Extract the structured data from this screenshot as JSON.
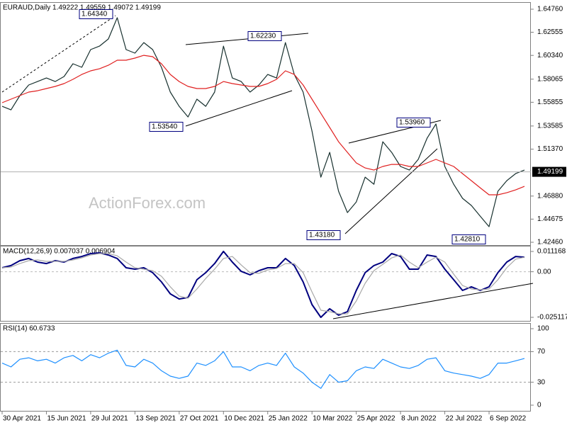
{
  "chart_data": [
    {
      "type": "line",
      "title": "EURAUD,Daily  1.49222 1.49559 1.49072 1.49199",
      "watermark": "ActionForex.com",
      "categories": [
        "30 Apr 2021",
        null,
        null,
        null,
        null,
        "15 Jun 2021",
        null,
        null,
        null,
        null,
        "29 Jul 2021",
        null,
        null,
        null,
        null,
        "13 Sep 2021",
        null,
        null,
        null,
        null,
        "27 Oct 2021",
        null,
        null,
        null,
        null,
        "10 Dec 2021",
        null,
        null,
        null,
        null,
        "25 Jan 2022",
        null,
        null,
        null,
        null,
        "10 Mar 2022",
        null,
        null,
        null,
        null,
        "25 Apr 2022",
        null,
        null,
        null,
        null,
        "8 Jun 2022",
        null,
        null,
        null,
        null,
        "22 Jul 2022",
        null,
        null,
        null,
        null,
        "6 Sep 2022",
        null,
        null,
        null,
        null
      ],
      "series": [
        {
          "color": "#17302e",
          "values": [
            1.5547,
            1.5513,
            1.5649,
            1.5751,
            1.5784,
            1.5818,
            1.5784,
            1.5832,
            1.5954,
            1.592,
            1.609,
            1.6123,
            1.6191,
            1.6395,
            1.609,
            1.6056,
            1.6157,
            1.609,
            1.592,
            1.5683,
            1.5547,
            1.5445,
            1.5615,
            1.5547,
            1.5683,
            1.6123,
            1.5818,
            1.5784,
            1.5683,
            1.5751,
            1.5852,
            1.5818,
            1.6157,
            1.5852,
            1.5683,
            1.531,
            1.4869,
            1.5106,
            1.4734,
            1.453,
            1.4632,
            1.4869,
            1.4801,
            1.5208,
            1.5106,
            1.4971,
            1.4937,
            1.5039,
            1.5242,
            1.5378,
            1.4971,
            1.4801,
            1.4666,
            1.4598,
            1.4496,
            1.4395,
            1.4734,
            1.4835,
            1.4903,
            1.4937
          ]
        },
        {
          "color": "#e02020",
          "values": [
            1.5581,
            1.5615,
            1.5649,
            1.5683,
            1.5696,
            1.5717,
            1.5737,
            1.5764,
            1.5805,
            1.5852,
            1.5886,
            1.5906,
            1.594,
            1.5988,
            1.5988,
            1.6008,
            1.6035,
            1.6022,
            1.5954,
            1.5852,
            1.5784,
            1.5737,
            1.5717,
            1.5717,
            1.5737,
            1.5784,
            1.5764,
            1.5751,
            1.5737,
            1.5737,
            1.5764,
            1.5805,
            1.5886,
            1.5852,
            1.5751,
            1.5615,
            1.5479,
            1.5344,
            1.5208,
            1.5106,
            1.5005,
            1.4957,
            1.4937,
            1.4971,
            1.4991,
            1.4991,
            1.4971,
            1.4971,
            1.5005,
            1.5039,
            1.5005,
            1.4971,
            1.4903,
            1.4835,
            1.4767,
            1.47,
            1.47,
            1.472,
            1.4747,
            1.4781
          ]
        }
      ],
      "ylim": [
        1.4219,
        1.6537
      ],
      "yticks": [
        {
          "value": 1.6476,
          "label": "1.64760"
        },
        {
          "value": 1.62555,
          "label": "1.62555"
        },
        {
          "value": 1.6034,
          "label": "1.60340"
        },
        {
          "value": 1.58065,
          "label": "1.58065"
        },
        {
          "value": 1.55855,
          "label": "1.55855"
        },
        {
          "value": 1.53585,
          "label": "1.53585"
        },
        {
          "value": 1.5137,
          "label": "1.51370"
        },
        {
          "value": 1.4688,
          "label": "1.46880"
        },
        {
          "value": 1.44675,
          "label": "1.44675"
        },
        {
          "value": 1.4246,
          "label": "1.42460"
        }
      ],
      "last_price": {
        "value": 1.49199,
        "label": "1.49199"
      },
      "annotations": [
        "1.64340",
        "1.62230",
        "1.53540",
        "1.53960",
        "1.43180",
        "1.42810"
      ]
    },
    {
      "type": "line",
      "title": "MACD(12,26,9) 0.007037 0.006904",
      "series": [
        {
          "color": "#00007f",
          "values": [
            0.0022,
            0.0034,
            0.0061,
            0.0073,
            0.0053,
            0.0045,
            0.0061,
            0.0053,
            0.0073,
            0.0084,
            0.01,
            0.0104,
            0.0092,
            0.0073,
            0.0022,
            0.0014,
            0.0022,
            -0.0005,
            -0.0056,
            -0.0122,
            -0.015,
            -0.0142,
            -0.0044,
            -0.0005,
            0.0045,
            0.0112,
            0.0053,
            0.0002,
            -0.0017,
            0.0006,
            0.0022,
            0.0022,
            0.0073,
            0.0034,
            -0.0056,
            -0.0181,
            -0.0251,
            -0.0204,
            -0.0239,
            -0.022,
            -0.0103,
            -0.0005,
            0.0034,
            0.0053,
            0.01,
            0.0084,
            0.0014,
            0.0014,
            0.0092,
            0.0084,
            0.0014,
            -0.0044,
            -0.0103,
            -0.0083,
            -0.0103,
            -0.0083,
            -0.0005,
            0.0053,
            0.0084,
            0.008
          ]
        },
        {
          "color": "#a8a8a8",
          "values": [
            0.0022,
            0.0026,
            0.0045,
            0.0061,
            0.0065,
            0.0057,
            0.0057,
            0.0057,
            0.0065,
            0.0076,
            0.0092,
            0.01,
            0.01,
            0.0088,
            0.0053,
            0.0022,
            0.0014,
            0.0006,
            -0.0025,
            -0.0083,
            -0.0134,
            -0.0146,
            -0.0095,
            -0.0037,
            0.0014,
            0.0073,
            0.0084,
            0.0037,
            -0.0005,
            -0.0009,
            0.001,
            0.0018,
            0.0045,
            0.0045,
            -0.0005,
            -0.0111,
            -0.0212,
            -0.022,
            -0.0232,
            -0.0232,
            -0.0161,
            -0.0064,
            0.0006,
            0.0041,
            0.0076,
            0.0092,
            0.0053,
            0.0022,
            0.0053,
            0.008,
            0.0053,
            -0.0013,
            -0.0076,
            -0.0095,
            -0.0099,
            -0.0095,
            -0.0044,
            0.0022,
            0.0069,
            0.008
          ]
        }
      ],
      "ylim": [
        -0.02707,
        0.0139
      ],
      "yticks": [
        0.011168,
        {
          "value": 0,
          "label": "0.00"
        },
        -0.025117
      ]
    },
    {
      "type": "line",
      "title": "RSI(14) 60.6733",
      "series": [
        {
          "color": "#1e90ff",
          "values": [
            55,
            50,
            60,
            62,
            58,
            60,
            55,
            62,
            65,
            58,
            66,
            62,
            68,
            72,
            52,
            50,
            60,
            55,
            45,
            38,
            35,
            38,
            55,
            52,
            58,
            70,
            50,
            50,
            45,
            52,
            55,
            52,
            68,
            50,
            42,
            30,
            22,
            40,
            30,
            32,
            45,
            50,
            48,
            60,
            55,
            50,
            48,
            52,
            60,
            62,
            45,
            42,
            40,
            38,
            35,
            40,
            55,
            55,
            58,
            61
          ]
        }
      ],
      "ylim": [
        -7.4,
        106.5
      ],
      "yticks": [
        100,
        70,
        30,
        0
      ]
    }
  ]
}
